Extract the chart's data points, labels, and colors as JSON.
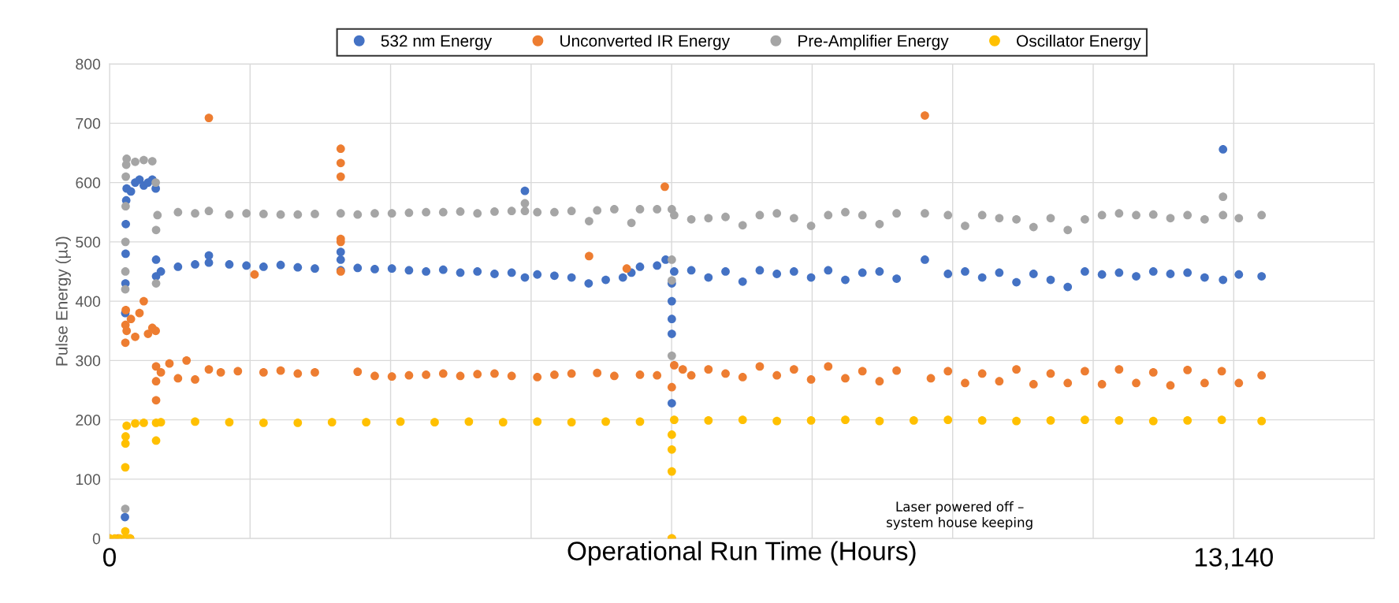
{
  "chart_data": {
    "type": "scatter",
    "xlabel": "Operational Run Time (Hours)",
    "ylabel": "Pulse Energy (µJ)",
    "xlim": [
      0,
      14782.5
    ],
    "ylim": [
      0,
      800
    ],
    "xticks": [
      {
        "value": 0,
        "label": "0"
      },
      {
        "value": 1642.5,
        "label": null
      },
      {
        "value": 3285,
        "label": null
      },
      {
        "value": 4927.5,
        "label": null
      },
      {
        "value": 6570,
        "label": null
      },
      {
        "value": 8212.5,
        "label": null
      },
      {
        "value": 9855,
        "label": null
      },
      {
        "value": 11497.5,
        "label": null
      },
      {
        "value": 13140,
        "label": "13,140"
      },
      {
        "value": 14782.5,
        "label": null
      }
    ],
    "yticks": [
      0,
      100,
      200,
      300,
      400,
      500,
      600,
      700,
      800
    ],
    "grid": true,
    "legend": "top",
    "marker": "circle",
    "annotations": [
      "Laser powered off –\nsystem house keeping"
    ],
    "series": [
      {
        "name": "532 nm Energy",
        "color": "#4472c4",
        "x": [
          180,
          184,
          186,
          188,
          190,
          195,
          200,
          250,
          300,
          350,
          400,
          450,
          500,
          540,
          544,
          544,
          600,
          800,
          1000,
          1161,
          1161,
          1400,
          1600,
          1800,
          2000,
          2200,
          2400,
          2702,
          2702,
          2702,
          2900,
          3100,
          3300,
          3500,
          3700,
          3900,
          4100,
          4300,
          4500,
          4700,
          4855,
          4855,
          5000,
          5200,
          5400,
          5600,
          5800,
          6000,
          6100,
          6200,
          6400,
          6500,
          6572,
          6572,
          6572,
          6572,
          6572,
          6600,
          6800,
          7000,
          7200,
          7400,
          7600,
          7800,
          8000,
          8200,
          8400,
          8600,
          8800,
          9000,
          9200,
          9530,
          9800,
          10000,
          10200,
          10400,
          10600,
          10800,
          11000,
          11200,
          11400,
          11600,
          11800,
          12000,
          12200,
          12400,
          12600,
          12800,
          13015,
          13015,
          13200,
          13466
        ],
        "values": [
          36,
          380,
          430,
          480,
          530,
          570,
          590,
          585,
          600,
          605,
          595,
          600,
          605,
          590,
          470,
          442,
          450,
          458,
          462,
          465,
          477,
          462,
          460,
          458,
          461,
          457,
          455,
          483,
          470,
          452,
          456,
          454,
          455,
          452,
          450,
          453,
          448,
          450,
          446,
          448,
          586,
          440,
          445,
          443,
          440,
          430,
          436,
          440,
          448,
          458,
          460,
          470,
          228,
          345,
          370,
          400,
          430,
          450,
          452,
          440,
          450,
          433,
          452,
          446,
          450,
          440,
          452,
          436,
          448,
          450,
          438,
          470,
          446,
          450,
          440,
          448,
          432,
          446,
          436,
          424,
          450,
          445,
          448,
          442,
          450,
          446,
          448,
          440,
          656,
          436,
          445,
          442
        ]
      },
      {
        "name": "Unconverted IR Energy",
        "color": "#ed7d31",
        "x": [
          0,
          100,
          240,
          185,
          186,
          190,
          200,
          250,
          300,
          350,
          400,
          450,
          500,
          540,
          544,
          544,
          544,
          600,
          700,
          800,
          900,
          1000,
          1161,
          1161,
          1300,
          1500,
          1695,
          1800,
          2000,
          2200,
          2400,
          2702,
          2702,
          2702,
          2702,
          2702,
          2702,
          2900,
          3100,
          3300,
          3500,
          3700,
          3900,
          4100,
          4300,
          4500,
          4700,
          5000,
          5200,
          5400,
          5605,
          5700,
          5900,
          6045,
          6200,
          6400,
          6490,
          6572,
          6572,
          6600,
          6700,
          6800,
          7000,
          7200,
          7400,
          7600,
          7800,
          8000,
          8200,
          8400,
          8600,
          8800,
          9000,
          9200,
          9530,
          9600,
          9800,
          10000,
          10200,
          10400,
          10600,
          10800,
          11000,
          11200,
          11400,
          11600,
          11800,
          12000,
          12200,
          12400,
          12600,
          12800,
          13000,
          13200,
          13466
        ],
        "values": [
          0,
          0,
          0,
          330,
          360,
          385,
          350,
          370,
          340,
          380,
          400,
          345,
          355,
          350,
          233,
          265,
          290,
          280,
          295,
          270,
          300,
          268,
          709,
          285,
          280,
          282,
          445,
          280,
          283,
          278,
          280,
          657,
          633,
          610,
          505,
          500,
          450,
          281,
          274,
          273,
          275,
          276,
          278,
          274,
          277,
          278,
          274,
          272,
          276,
          278,
          476,
          279,
          274,
          455,
          276,
          275,
          593,
          0,
          255,
          292,
          285,
          275,
          285,
          278,
          272,
          290,
          275,
          285,
          268,
          290,
          270,
          282,
          265,
          283,
          713,
          270,
          282,
          262,
          278,
          265,
          285,
          260,
          278,
          262,
          282,
          260,
          285,
          262,
          280,
          258,
          284,
          262,
          282,
          262,
          275
        ]
      },
      {
        "name": "Pre-Amplifier Energy",
        "color": "#a5a5a5",
        "x": [
          184,
          184,
          185,
          186,
          188,
          190,
          195,
          200,
          300,
          400,
          500,
          540,
          544,
          544,
          560,
          800,
          1000,
          1161,
          1400,
          1600,
          1800,
          2000,
          2200,
          2400,
          2702,
          2900,
          3100,
          3300,
          3500,
          3700,
          3900,
          4100,
          4300,
          4500,
          4700,
          4855,
          4855,
          5000,
          5200,
          5400,
          5605,
          5700,
          5900,
          6100,
          6200,
          6400,
          6572,
          6572,
          6572,
          6572,
          6600,
          6800,
          7000,
          7200,
          7400,
          7600,
          7800,
          8000,
          8200,
          8400,
          8600,
          8800,
          9000,
          9200,
          9530,
          9800,
          10000,
          10200,
          10400,
          10600,
          10800,
          11000,
          11200,
          11400,
          11600,
          11800,
          12000,
          12200,
          12400,
          12600,
          12800,
          13015,
          13015,
          13200,
          13466
        ],
        "values": [
          50,
          420,
          450,
          500,
          560,
          610,
          630,
          640,
          635,
          638,
          636,
          600,
          520,
          430,
          545,
          550,
          548,
          552,
          546,
          548,
          547,
          546,
          546,
          547,
          548,
          546,
          548,
          548,
          549,
          550,
          550,
          551,
          548,
          551,
          552,
          565,
          552,
          550,
          550,
          552,
          535,
          553,
          555,
          532,
          555,
          555,
          555,
          470,
          435,
          308,
          545,
          538,
          540,
          542,
          528,
          545,
          548,
          540,
          527,
          545,
          550,
          545,
          530,
          548,
          548,
          545,
          527,
          545,
          540,
          538,
          525,
          540,
          520,
          538,
          545,
          548,
          545,
          546,
          540,
          545,
          538,
          576,
          545,
          540,
          545
        ]
      },
      {
        "name": "Oscillator Energy",
        "color": "#ffc000",
        "x": [
          0,
          60,
          120,
          180,
          240,
          184,
          184,
          186,
          188,
          200,
          300,
          400,
          544,
          544,
          600,
          1000,
          1400,
          1800,
          2200,
          2600,
          3000,
          3400,
          3800,
          4200,
          4600,
          5000,
          5400,
          5800,
          6200,
          6572,
          6572,
          6572,
          6572,
          6600,
          7000,
          7400,
          7800,
          8200,
          8600,
          9000,
          9400,
          9800,
          10200,
          10600,
          11000,
          11400,
          11800,
          12200,
          12600,
          13000,
          13466
        ],
        "values": [
          0,
          0,
          0,
          0,
          0,
          12,
          120,
          160,
          172,
          190,
          194,
          195,
          165,
          195,
          196,
          197,
          196,
          195,
          195,
          196,
          196,
          197,
          196,
          197,
          196,
          197,
          196,
          197,
          197,
          0,
          113,
          150,
          175,
          200,
          199,
          200,
          198,
          199,
          200,
          198,
          199,
          200,
          199,
          198,
          199,
          200,
          199,
          198,
          199,
          200,
          198
        ]
      }
    ]
  }
}
